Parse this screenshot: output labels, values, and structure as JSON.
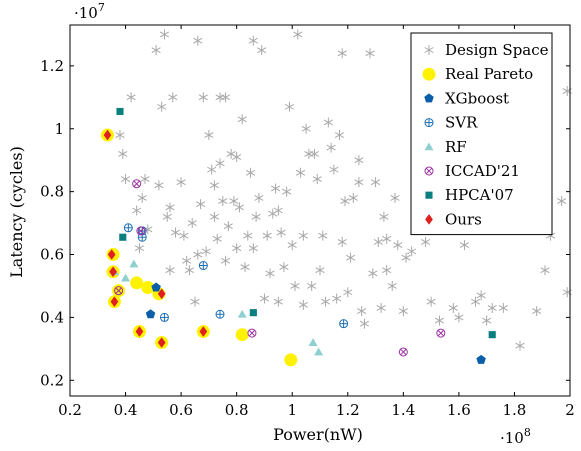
{
  "chart_data": {
    "type": "scatter",
    "title": "",
    "xlabel": "Power(nW)",
    "ylabel": "Latency (cycles)",
    "x_exponent": "·10^8",
    "y_exponent": "·10^7",
    "x_exponent_base": "·10",
    "x_exponent_power": "8",
    "y_exponent_base": "·10",
    "y_exponent_power": "7",
    "xlim": [
      0.2,
      2.0
    ],
    "ylim": [
      0.15,
      1.33
    ],
    "xticks": [
      0.2,
      0.4,
      0.6,
      0.8,
      1.0,
      1.2,
      1.4,
      1.6,
      1.8,
      2.0
    ],
    "xtick_labels": [
      "0.2",
      "0.4",
      "0.6",
      "0.8",
      "1",
      "1.2",
      "1.4",
      "1.6",
      "1.8",
      "2"
    ],
    "yticks": [
      0.2,
      0.4,
      0.6,
      0.8,
      1.0,
      1.2
    ],
    "ytick_labels": [
      "0.2",
      "0.4",
      "0.6",
      "0.8",
      "1",
      "1.2"
    ],
    "legend_position": "top-right",
    "series": [
      {
        "name": "Design Space",
        "marker": "star",
        "color": "#a8a8a8",
        "points": [
          [
            0.38,
            0.98
          ],
          [
            0.39,
            0.92
          ],
          [
            0.4,
            0.84
          ],
          [
            0.42,
            1.1
          ],
          [
            0.44,
            0.74
          ],
          [
            0.45,
            0.62
          ],
          [
            0.46,
            0.78
          ],
          [
            0.47,
            0.84
          ],
          [
            0.48,
            0.68
          ],
          [
            0.51,
            1.25
          ],
          [
            0.52,
            0.82
          ],
          [
            0.53,
            1.07
          ],
          [
            0.54,
            1.3
          ],
          [
            0.55,
            0.72
          ],
          [
            0.56,
            0.55
          ],
          [
            0.57,
            1.1
          ],
          [
            0.58,
            0.67
          ],
          [
            0.6,
            0.83
          ],
          [
            0.62,
            0.58
          ],
          [
            0.63,
            0.55
          ],
          [
            0.64,
            0.7
          ],
          [
            0.65,
            0.45
          ],
          [
            0.66,
            1.28
          ],
          [
            0.67,
            0.76
          ],
          [
            0.68,
            1.1
          ],
          [
            0.69,
            0.61
          ],
          [
            0.7,
            0.98
          ],
          [
            0.71,
            0.87
          ],
          [
            0.72,
            0.72
          ],
          [
            0.73,
            0.65
          ],
          [
            0.74,
            0.89
          ],
          [
            0.74,
            1.1
          ],
          [
            0.75,
            0.77
          ],
          [
            0.76,
            1.1
          ],
          [
            0.77,
            0.69
          ],
          [
            0.78,
            0.92
          ],
          [
            0.79,
            0.77
          ],
          [
            0.8,
            0.62
          ],
          [
            0.81,
            0.75
          ],
          [
            0.82,
            1.03
          ],
          [
            0.83,
            0.56
          ],
          [
            0.84,
            0.66
          ],
          [
            0.85,
            0.86
          ],
          [
            0.86,
            1.28
          ],
          [
            0.87,
            0.72
          ],
          [
            0.88,
            0.78
          ],
          [
            0.89,
            1.25
          ],
          [
            0.9,
            0.46
          ],
          [
            0.91,
            0.66
          ],
          [
            0.92,
            0.54
          ],
          [
            0.93,
            0.73
          ],
          [
            0.94,
            0.81
          ],
          [
            0.95,
            0.45
          ],
          [
            0.96,
            0.67
          ],
          [
            0.97,
            0.56
          ],
          [
            0.98,
            0.8
          ],
          [
            0.99,
            1.07
          ],
          [
            1.0,
            0.63
          ],
          [
            1.01,
            0.5
          ],
          [
            1.02,
            1.3
          ],
          [
            1.03,
            0.86
          ],
          [
            1.04,
            0.66
          ],
          [
            1.05,
            1.0
          ],
          [
            1.06,
            0.92
          ],
          [
            1.07,
            0.5
          ],
          [
            1.08,
            0.92
          ],
          [
            1.09,
            0.84
          ],
          [
            1.1,
            0.55
          ],
          [
            1.11,
            0.66
          ],
          [
            1.12,
            0.45
          ],
          [
            1.13,
            1.02
          ],
          [
            1.14,
            0.94
          ],
          [
            1.15,
            0.87
          ],
          [
            1.16,
            0.46
          ],
          [
            1.17,
            0.98
          ],
          [
            1.18,
            1.24
          ],
          [
            1.19,
            0.77
          ],
          [
            1.2,
            0.48
          ],
          [
            1.21,
            0.59
          ],
          [
            1.22,
            0.78
          ],
          [
            1.24,
            0.83
          ],
          [
            1.25,
            0.42
          ],
          [
            1.26,
            0.38
          ],
          [
            1.28,
            1.24
          ],
          [
            1.29,
            0.54
          ],
          [
            1.3,
            0.83
          ],
          [
            1.31,
            0.64
          ],
          [
            1.32,
            0.43
          ],
          [
            1.33,
            0.72
          ],
          [
            1.34,
            0.65
          ],
          [
            1.36,
            0.5
          ],
          [
            1.37,
            0.78
          ],
          [
            1.38,
            0.63
          ],
          [
            1.4,
            0.42
          ],
          [
            1.41,
            0.59
          ],
          [
            1.43,
            0.61
          ],
          [
            1.45,
            0.76
          ],
          [
            1.48,
            0.64
          ],
          [
            1.5,
            0.45
          ],
          [
            1.53,
            0.39
          ],
          [
            1.55,
            0.77
          ],
          [
            1.58,
            0.43
          ],
          [
            1.6,
            0.4
          ],
          [
            1.62,
            0.63
          ],
          [
            1.64,
            0.86
          ],
          [
            1.66,
            0.45
          ],
          [
            1.68,
            0.47
          ],
          [
            1.7,
            0.39
          ],
          [
            1.72,
            0.43
          ],
          [
            1.76,
            0.43
          ],
          [
            1.78,
            0.78
          ],
          [
            1.8,
            0.73
          ],
          [
            1.82,
            0.31
          ],
          [
            1.86,
            0.74
          ],
          [
            1.88,
            0.42
          ],
          [
            1.91,
            0.55
          ],
          [
            1.93,
            0.66
          ],
          [
            1.97,
            0.77
          ],
          [
            1.99,
            0.48
          ],
          [
            1.99,
            1.12
          ],
          [
            0.66,
            0.6
          ],
          [
            0.72,
            0.82
          ],
          [
            0.8,
            0.91
          ],
          [
            0.86,
            0.62
          ],
          [
            0.95,
            0.74
          ],
          [
            1.04,
            0.44
          ],
          [
            1.18,
            0.64
          ],
          [
            1.24,
            0.9
          ],
          [
            1.34,
            0.55
          ],
          [
            0.56,
            0.75
          ],
          [
            0.61,
            0.66
          ],
          [
            0.76,
            0.58
          ]
        ]
      },
      {
        "name": "Real Pareto",
        "marker": "circle",
        "color": "#fff200",
        "points": [
          [
            0.335,
            0.98
          ],
          [
            0.355,
            0.6
          ],
          [
            0.355,
            0.545
          ],
          [
            0.36,
            0.45
          ],
          [
            0.375,
            0.485
          ],
          [
            0.44,
            0.51
          ],
          [
            0.45,
            0.355
          ],
          [
            0.48,
            0.495
          ],
          [
            0.52,
            0.475
          ],
          [
            0.53,
            0.32
          ],
          [
            0.68,
            0.355
          ],
          [
            0.82,
            0.345
          ],
          [
            0.995,
            0.265
          ]
        ]
      },
      {
        "name": "XGboost",
        "marker": "pentagon",
        "color": "#0a5fa8",
        "points": [
          [
            0.49,
            0.41
          ],
          [
            0.51,
            0.495
          ],
          [
            1.68,
            0.265
          ]
        ]
      },
      {
        "name": "SVR",
        "marker": "circle-plus",
        "color": "#1f6fb4",
        "points": [
          [
            0.41,
            0.685
          ],
          [
            0.46,
            0.675
          ],
          [
            0.46,
            0.655
          ],
          [
            0.54,
            0.4
          ],
          [
            0.68,
            0.565
          ],
          [
            0.74,
            0.41
          ],
          [
            1.185,
            0.38
          ]
        ]
      },
      {
        "name": "RF",
        "marker": "triangle",
        "color": "#8fcfcf",
        "points": [
          [
            0.36,
            0.545
          ],
          [
            0.4,
            0.525
          ],
          [
            0.43,
            0.57
          ],
          [
            0.82,
            0.41
          ],
          [
            1.075,
            0.32
          ],
          [
            1.095,
            0.29
          ]
        ]
      },
      {
        "name": "ICCAD'21",
        "marker": "circle-x",
        "color": "#9a2fa0",
        "points": [
          [
            0.375,
            0.485
          ],
          [
            0.44,
            0.825
          ],
          [
            0.455,
            0.675
          ],
          [
            0.855,
            0.35
          ],
          [
            1.4,
            0.29
          ],
          [
            1.535,
            0.35
          ]
        ]
      },
      {
        "name": "HPCA'07",
        "marker": "square",
        "color": "#0b7f7f",
        "points": [
          [
            0.38,
            1.055
          ],
          [
            0.39,
            0.655
          ],
          [
            0.86,
            0.415
          ],
          [
            1.72,
            0.345
          ]
        ]
      },
      {
        "name": "Ours",
        "marker": "diamond",
        "color": "#e02020",
        "points": [
          [
            0.335,
            0.98
          ],
          [
            0.35,
            0.6
          ],
          [
            0.355,
            0.545
          ],
          [
            0.36,
            0.45
          ],
          [
            0.45,
            0.355
          ],
          [
            0.53,
            0.475
          ],
          [
            0.53,
            0.32
          ],
          [
            0.68,
            0.355
          ]
        ]
      }
    ]
  }
}
